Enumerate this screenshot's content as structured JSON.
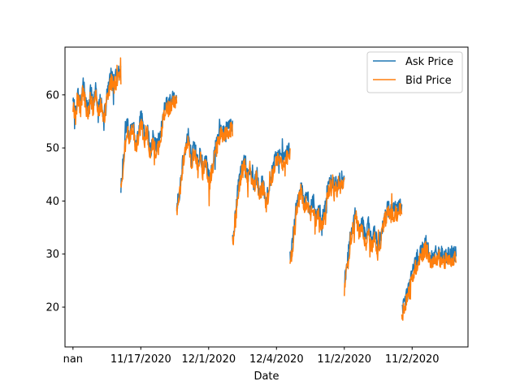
{
  "chart_data": {
    "type": "line",
    "xlabel": "Date",
    "ylabel": "",
    "title": "",
    "x_tick_labels": [
      "nan",
      "11/17/2020",
      "12/1/2020",
      "12/4/2020",
      "11/2/2020",
      "11/2/2020"
    ],
    "y_ticks": [
      20,
      30,
      40,
      50,
      60
    ],
    "ylim": [
      12.5,
      69
    ],
    "grid": false,
    "legend_position": "top-right",
    "colors": {
      "ask": "#1f77b4",
      "bid": "#ff7f0e"
    },
    "series": [
      {
        "name": "Ask Price",
        "segments": [
          {
            "x0": 0,
            "x1": 60,
            "values": [
              58.5,
              56.5,
              60.2,
              58.0,
              62.5,
              59.0,
              57.0,
              60.5,
              58.2,
              61.0,
              57.5,
              59.5,
              56.0,
              58.5,
              61.5,
              63.5,
              62.5,
              63.5,
              64.0,
              64.5
            ]
          },
          {
            "x0": 60,
            "x1": 130,
            "values": [
              43.0,
              48.5,
              54.5,
              52.5,
              55.5,
              50.5,
              53.5,
              56.0,
              51.5,
              54.0,
              49.5,
              52.0,
              50.0,
              51.5,
              54.5,
              58.5,
              58.0,
              59.0,
              59.5,
              60.0
            ]
          },
          {
            "x0": 130,
            "x1": 200,
            "values": [
              38.5,
              42.0,
              47.5,
              50.5,
              52.5,
              48.0,
              50.5,
              47.5,
              49.5,
              46.0,
              48.0,
              44.5,
              46.5,
              49.5,
              52.0,
              53.5,
              53.0,
              53.5,
              54.0,
              54.5
            ]
          },
          {
            "x0": 200,
            "x1": 272,
            "values": [
              33.0,
              37.5,
              43.5,
              46.0,
              48.0,
              44.5,
              46.5,
              43.0,
              45.5,
              41.5,
              44.0,
              40.0,
              42.5,
              45.5,
              47.5,
              48.5,
              48.0,
              48.5,
              49.0,
              49.5
            ]
          },
          {
            "x0": 272,
            "x1": 340,
            "values": [
              29.0,
              33.0,
              38.0,
              41.0,
              43.0,
              39.0,
              41.5,
              38.0,
              40.5,
              37.0,
              39.5,
              36.0,
              38.5,
              41.5,
              43.5,
              43.5,
              43.0,
              43.5,
              44.0,
              44.5
            ]
          },
          {
            "x0": 340,
            "x1": 412,
            "values": [
              24.5,
              28.5,
              33.5,
              36.0,
              38.0,
              34.5,
              36.5,
              33.0,
              35.5,
              32.0,
              34.5,
              31.0,
              33.5,
              36.5,
              38.5,
              38.5,
              38.0,
              38.5,
              39.0,
              39.5
            ]
          },
          {
            "x0": 412,
            "x1": 480,
            "values": [
              19.5,
              23.0,
              27.5,
              30.5,
              32.0,
              29.0,
              30.5,
              29.5,
              30.0,
              29.8
            ]
          }
        ]
      },
      {
        "name": "Bid Price",
        "segments": [
          {
            "x0": 0,
            "x1": 60,
            "values": [
              57.5,
              55.5,
              59.2,
              57.0,
              61.5,
              58.0,
              56.0,
              59.5,
              57.2,
              60.0,
              56.5,
              58.5,
              55.0,
              57.5,
              60.5,
              62.5,
              61.5,
              62.5,
              63.0,
              63.5
            ]
          },
          {
            "x0": 60,
            "x1": 130,
            "values": [
              42.0,
              47.5,
              53.5,
              51.5,
              54.5,
              49.5,
              52.5,
              55.0,
              50.5,
              53.0,
              48.5,
              51.0,
              49.0,
              50.5,
              53.5,
              57.5,
              57.0,
              58.0,
              58.5,
              59.0
            ]
          },
          {
            "x0": 130,
            "x1": 200,
            "values": [
              37.5,
              41.0,
              46.5,
              49.5,
              51.5,
              47.0,
              49.5,
              46.5,
              48.5,
              45.0,
              47.0,
              43.5,
              45.5,
              48.5,
              51.0,
              52.5,
              52.0,
              52.5,
              53.0,
              53.5
            ]
          },
          {
            "x0": 200,
            "x1": 272,
            "values": [
              32.0,
              36.5,
              42.5,
              45.0,
              47.0,
              43.5,
              45.5,
              42.0,
              44.5,
              40.5,
              43.0,
              39.0,
              41.5,
              44.5,
              46.5,
              47.5,
              47.0,
              47.5,
              48.0,
              48.5
            ]
          },
          {
            "x0": 272,
            "x1": 340,
            "values": [
              28.0,
              32.0,
              37.0,
              40.0,
              42.0,
              38.0,
              40.5,
              37.0,
              39.5,
              36.0,
              38.5,
              35.0,
              37.5,
              40.5,
              42.5,
              42.5,
              42.0,
              42.5,
              43.0,
              43.5
            ]
          },
          {
            "x0": 340,
            "x1": 412,
            "values": [
              23.5,
              27.5,
              32.5,
              35.0,
              37.0,
              33.5,
              35.5,
              32.0,
              34.5,
              31.0,
              33.5,
              30.0,
              32.5,
              35.5,
              37.5,
              37.5,
              37.0,
              37.5,
              38.0,
              38.5
            ]
          },
          {
            "x0": 412,
            "x1": 480,
            "values": [
              18.5,
              22.0,
              26.5,
              29.5,
              31.0,
              28.0,
              29.5,
              28.5,
              29.0,
              29.2
            ]
          }
        ]
      }
    ]
  }
}
